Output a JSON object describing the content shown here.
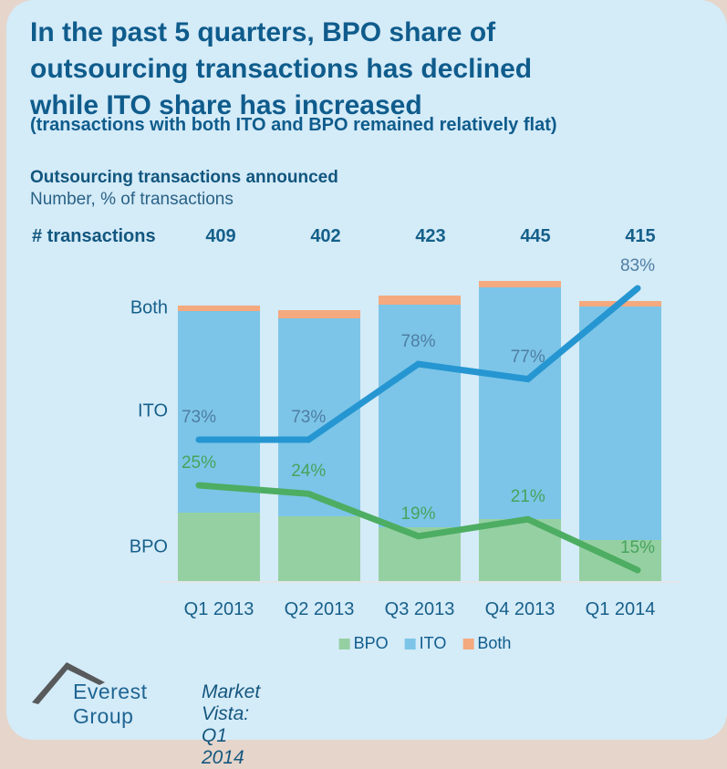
{
  "header": {
    "title_lines": [
      "In the past 5 quarters, BPO share of",
      "outsourcing transactions has declined",
      "while ITO share has increased"
    ],
    "subtitle": "(transactions with both ITO and BPO remained relatively flat)"
  },
  "chart_header": {
    "line1": "Outsourcing transactions announced",
    "line2": "Number, % of transactions"
  },
  "chart_data": {
    "type": "bar",
    "stacked": true,
    "title": "Outsourcing transactions announced",
    "ylabel": "Number, % of transactions",
    "categories": [
      "Q1 2013",
      "Q2 2013",
      "Q3 2013",
      "Q4 2013",
      "Q1 2014"
    ],
    "transactions_label": "# transactions",
    "transactions": [
      409,
      402,
      423,
      445,
      415
    ],
    "bar_height_proportional_to": "transactions",
    "value_suffix": "%",
    "series": [
      {
        "name": "BPO",
        "values": [
          25,
          24,
          19,
          21,
          15
        ],
        "bar_color": "#95d0a2",
        "line_color": "#4dad62",
        "labeled": true
      },
      {
        "name": "ITO",
        "values": [
          73,
          73,
          78,
          77,
          83
        ],
        "bar_color": "#7cc5e8",
        "line_color": "#2596d1",
        "labeled": true
      },
      {
        "name": "Both",
        "values": [
          2,
          3,
          3,
          2,
          2
        ],
        "bar_color": "#f4a97e",
        "labeled": false
      }
    ],
    "segment_axis_labels": [
      "Both",
      "ITO",
      "BPO"
    ],
    "legend_position": "bottom",
    "grid": false
  },
  "legend": [
    {
      "label": "BPO",
      "color": "#95d0a2"
    },
    {
      "label": "ITO",
      "color": "#7cc5e8"
    },
    {
      "label": "Both",
      "color": "#f4a97e"
    }
  ],
  "footer": {
    "brand": "Everest Group",
    "caption": "Market Vista: Q1 2014",
    "logo": "mountain-peak-icon",
    "logo_color": "#58595b"
  }
}
